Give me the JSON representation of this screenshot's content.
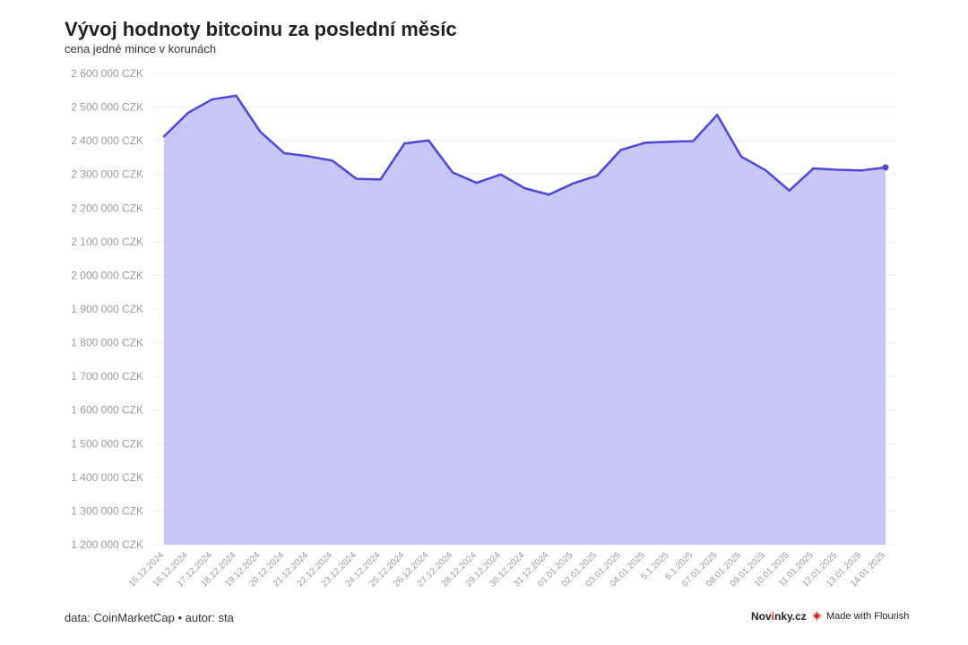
{
  "chart_data": {
    "type": "area",
    "title": "Vývoj hodnoty bitcoinu za poslední měsíc",
    "subtitle": "cena jedné mince v korunách",
    "xlabel": "",
    "ylabel": "",
    "ylim": [
      1200000,
      2600000
    ],
    "y_ticks": [
      2600000,
      2500000,
      2400000,
      2300000,
      2200000,
      2100000,
      2000000,
      1900000,
      1800000,
      1700000,
      1600000,
      1500000,
      1400000,
      1300000,
      1200000
    ],
    "y_tick_labels": [
      "2 600 000 CZK",
      "2 500 000 CZK",
      "2 400 000 CZK",
      "2 300 000 CZK",
      "2 200 000 CZK",
      "2 100 000 CZK",
      "2 000 000 CZK",
      "1 900 000 CZK",
      "1 800 000 CZK",
      "1 700 000 CZK",
      "1 600 000 CZK",
      "1 500 000 CZK",
      "1 400 000 CZK",
      "1 300 000 CZK",
      "1 200 000 CZK"
    ],
    "categories": [
      "15.12.2024",
      "16.12.2024",
      "17.12.2024",
      "18.12.2024",
      "19.12.2024",
      "20.12.2024",
      "21.12.2024",
      "22.12.2024",
      "23.12.2024",
      "24.12.2024",
      "25.12.2024",
      "26.12.2024",
      "27.12.2024",
      "28.12.2024",
      "29.12.2024",
      "30.12.2024",
      "31.12.2024",
      "01.01.2025",
      "02.01.2025",
      "03.01.2025",
      "04.01.2025",
      "5.1.2025",
      "6.1.2025",
      "07.01.2025",
      "08.01.2025",
      "09.01.2025",
      "10.01.2025",
      "11.01.2025",
      "12.01.2025",
      "13.01.2025",
      "14.01.2025"
    ],
    "values": [
      2413000,
      2483000,
      2523000,
      2534000,
      2427000,
      2363000,
      2354000,
      2341000,
      2287000,
      2285000,
      2392000,
      2401000,
      2306000,
      2275000,
      2300000,
      2259000,
      2240000,
      2273000,
      2296000,
      2373000,
      2394000,
      2397000,
      2399000,
      2477000,
      2353000,
      2313000,
      2252000,
      2318000,
      2314000,
      2312000,
      2321000
    ],
    "grid": true,
    "legend": "none",
    "colors": {
      "line": "#4b47d9",
      "fill": "#c8c6f4",
      "grid": "#ececec",
      "axis_text": "#999999"
    }
  },
  "footer": {
    "source": "data: CoinMarketCap • autor: sta",
    "brand_prefix": "Nov",
    "brand_accent": "i",
    "brand_suffix": "nky.cz",
    "flourish": "Made with Flourish"
  }
}
